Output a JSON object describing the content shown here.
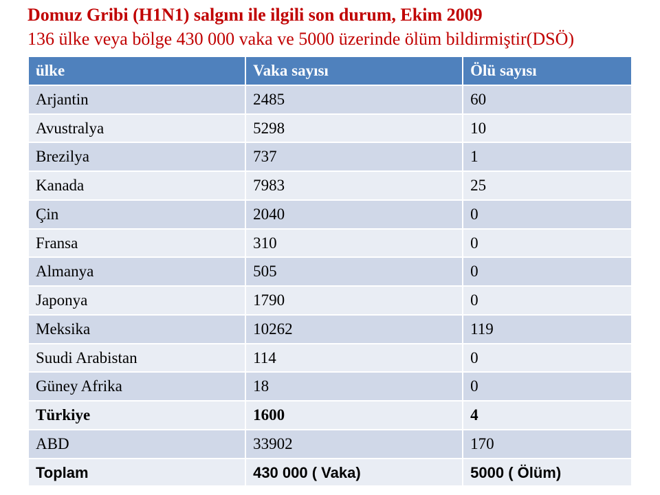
{
  "title": "Domuz Gribi (H1N1) salgını ile ilgili son durum, Ekim 2009",
  "subtitle": "136 ülke veya bölge 430 000 vaka ve 5000 üzerinde  ölüm bildirmiştir(DSÖ)",
  "colors": {
    "title": "#c00000",
    "header_bg": "#4f81bd",
    "header_text": "#ffffff",
    "band_a": "#d0d8e8",
    "band_b": "#e9edf4",
    "border": "#ffffff"
  },
  "table": {
    "columns": [
      "ülke",
      "Vaka sayısı",
      "Ölü sayısı"
    ],
    "rows": [
      {
        "country": "Arjantin",
        "cases": "2485",
        "deaths": "60"
      },
      {
        "country": "Avustralya",
        "cases": "5298",
        "deaths": "10"
      },
      {
        "country": "Brezilya",
        "cases": "737",
        "deaths": "1"
      },
      {
        "country": "Kanada",
        "cases": "7983",
        "deaths": "25"
      },
      {
        "country": "Çin",
        "cases": "2040",
        "deaths": "0"
      },
      {
        "country": "Fransa",
        "cases": "310",
        "deaths": "0"
      },
      {
        "country": "Almanya",
        "cases": "505",
        "deaths": "0"
      },
      {
        "country": "Japonya",
        "cases": "1790",
        "deaths": "0"
      },
      {
        "country": "Meksika",
        "cases": "10262",
        "deaths": "119"
      },
      {
        "country": "Suudi Arabistan",
        "cases": "114",
        "deaths": "0"
      },
      {
        "country": "Güney Afrika",
        "cases": "18",
        "deaths": "0"
      },
      {
        "country": "Türkiye",
        "cases": "1600",
        "deaths": "4",
        "bold": true
      },
      {
        "country": "ABD",
        "cases": "33902",
        "deaths": "170"
      }
    ],
    "totals": {
      "label": "Toplam",
      "cases": "430 000 ( Vaka)",
      "deaths": "5000 ( Ölüm)"
    }
  }
}
